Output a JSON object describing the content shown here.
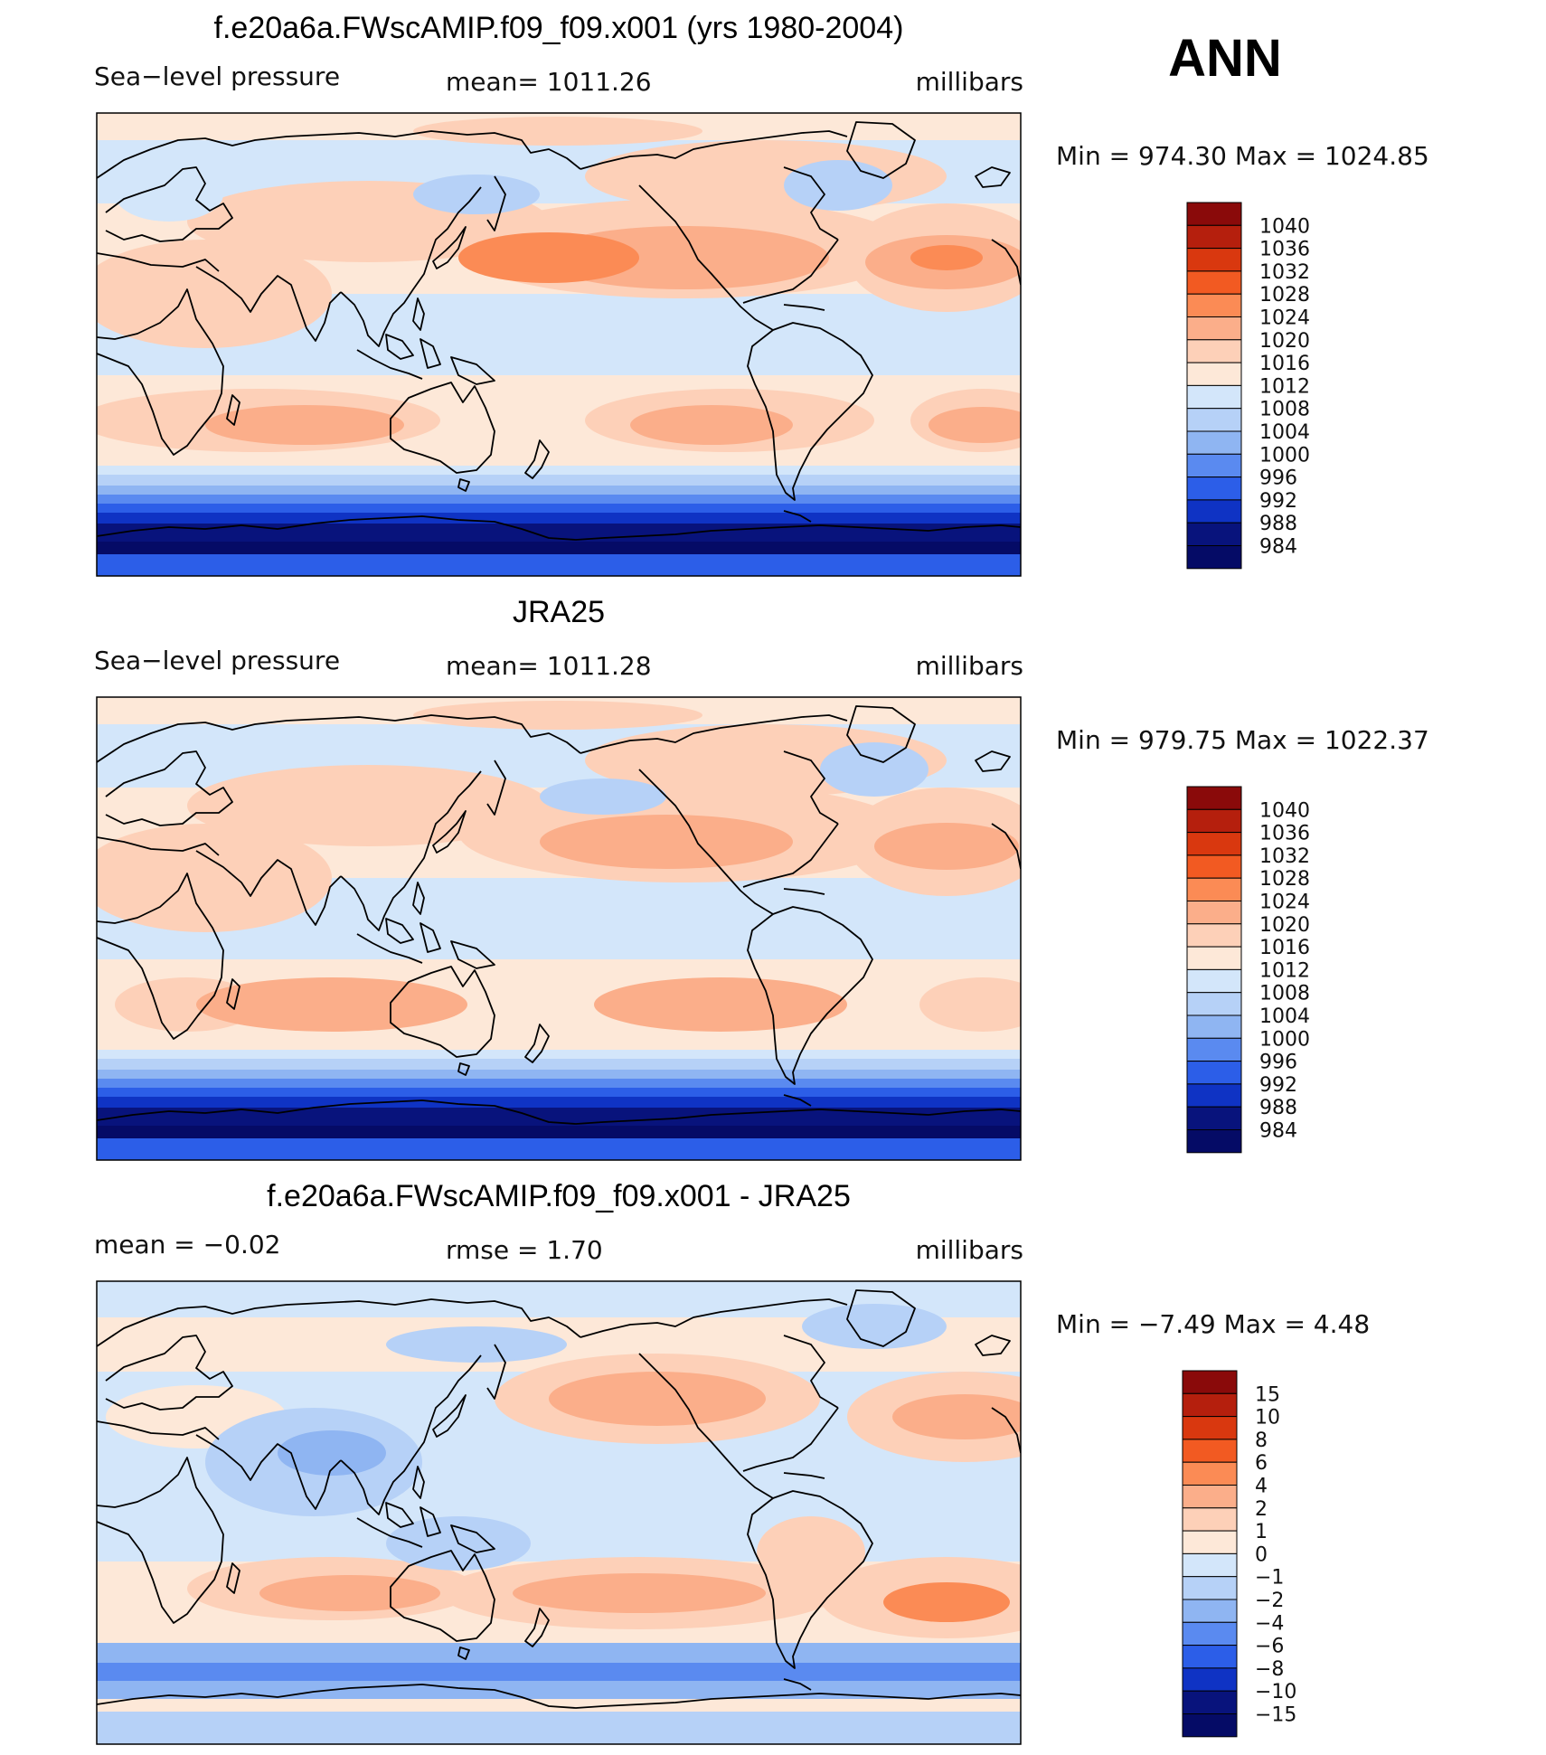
{
  "season": "ANN",
  "units": "millibars",
  "panels": [
    {
      "title": "f.e20a6a.FWscAMIP.f09_f09.x001 (yrs 1980-2004)",
      "left_label": "Sea−level pressure",
      "center_label": "mean=  1011.26",
      "right_label": "millibars",
      "minmax": "Min  =  974.30  Max  =  1024.85",
      "kind": "abs"
    },
    {
      "title": "JRA25",
      "left_label": "Sea−level pressure",
      "center_label": "mean=  1011.28",
      "right_label": "millibars",
      "minmax": "Min  =  979.75  Max  =  1022.37",
      "kind": "abs"
    },
    {
      "title": "f.e20a6a.FWscAMIP.f09_f09.x001 - JRA25",
      "left_label": "mean  =    −0.02",
      "center_label": "rmse  =     1.70",
      "right_label": "millibars",
      "minmax": "Min  =    −7.49  Max  =      4.48",
      "kind": "diff"
    }
  ],
  "legend_abs": {
    "levels": [
      "1040",
      "1036",
      "1032",
      "1028",
      "1024",
      "1020",
      "1016",
      "1012",
      "1008",
      "1004",
      "1000",
      "996",
      "992",
      "988",
      "984"
    ],
    "colors": [
      "#8a0a0a",
      "#b51f0d",
      "#d9380f",
      "#f25a22",
      "#fb8b55",
      "#fbae8a",
      "#fdd0b8",
      "#fde8d8",
      "#d3e6fa",
      "#b6d1f7",
      "#8fb5f2",
      "#5a8af0",
      "#2c5ee8",
      "#0f33c4",
      "#08137c",
      "#050b66"
    ]
  },
  "legend_diff": {
    "levels": [
      "15",
      "10",
      "8",
      "6",
      "4",
      "2",
      "1",
      "0",
      "−1",
      "−2",
      "−4",
      "−6",
      "−8",
      "−10",
      "−15"
    ],
    "colors": [
      "#8a0a0a",
      "#b51f0d",
      "#d9380f",
      "#f25a22",
      "#fb8b55",
      "#fbae8a",
      "#fdd0b8",
      "#fde8d8",
      "#d3e6fa",
      "#b6d1f7",
      "#8fb5f2",
      "#5a8af0",
      "#2c5ee8",
      "#0f33c4",
      "#08137c",
      "#050b66"
    ]
  }
}
